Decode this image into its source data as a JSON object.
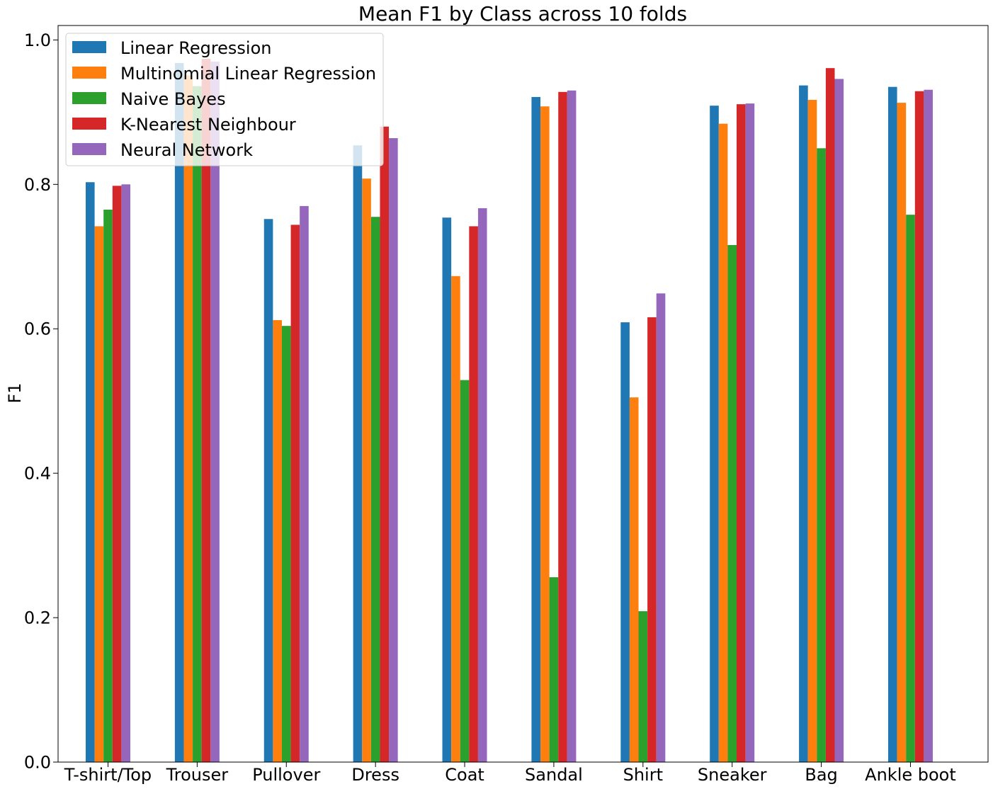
{
  "chart_data": {
    "type": "bar",
    "title": "Mean F1 by Class across 10 folds",
    "xlabel": "",
    "ylabel": "F1",
    "ylim": [
      0,
      1.02
    ],
    "yticks": [
      "0.0",
      "0.2",
      "0.4",
      "0.6",
      "0.8",
      "1.0"
    ],
    "categories": [
      "T-shirt/Top",
      "Trouser",
      "Pullover",
      "Dress",
      "Coat",
      "Sandal",
      "Shirt",
      "Sneaker",
      "Bag",
      "Ankle boot"
    ],
    "legend_position": "upper-left",
    "grid": false,
    "series": [
      {
        "name": "Linear Regression",
        "color": "#1f77b4",
        "values": [
          0.803,
          0.968,
          0.752,
          0.854,
          0.754,
          0.921,
          0.609,
          0.909,
          0.937,
          0.935
        ]
      },
      {
        "name": "Multinomial Linear Regression",
        "color": "#ff7f0e",
        "values": [
          0.742,
          0.951,
          0.612,
          0.808,
          0.673,
          0.908,
          0.505,
          0.884,
          0.917,
          0.913
        ]
      },
      {
        "name": "Naive Bayes",
        "color": "#2ca02c",
        "values": [
          0.765,
          0.936,
          0.604,
          0.755,
          0.529,
          0.256,
          0.209,
          0.716,
          0.85,
          0.758
        ]
      },
      {
        "name": "K-Nearest Neighbour",
        "color": "#d62728",
        "values": [
          0.798,
          0.974,
          0.744,
          0.88,
          0.742,
          0.928,
          0.616,
          0.911,
          0.961,
          0.929
        ]
      },
      {
        "name": "Neural Network",
        "color": "#9467bd",
        "values": [
          0.8,
          0.97,
          0.77,
          0.864,
          0.767,
          0.93,
          0.649,
          0.912,
          0.946,
          0.931
        ]
      }
    ]
  }
}
